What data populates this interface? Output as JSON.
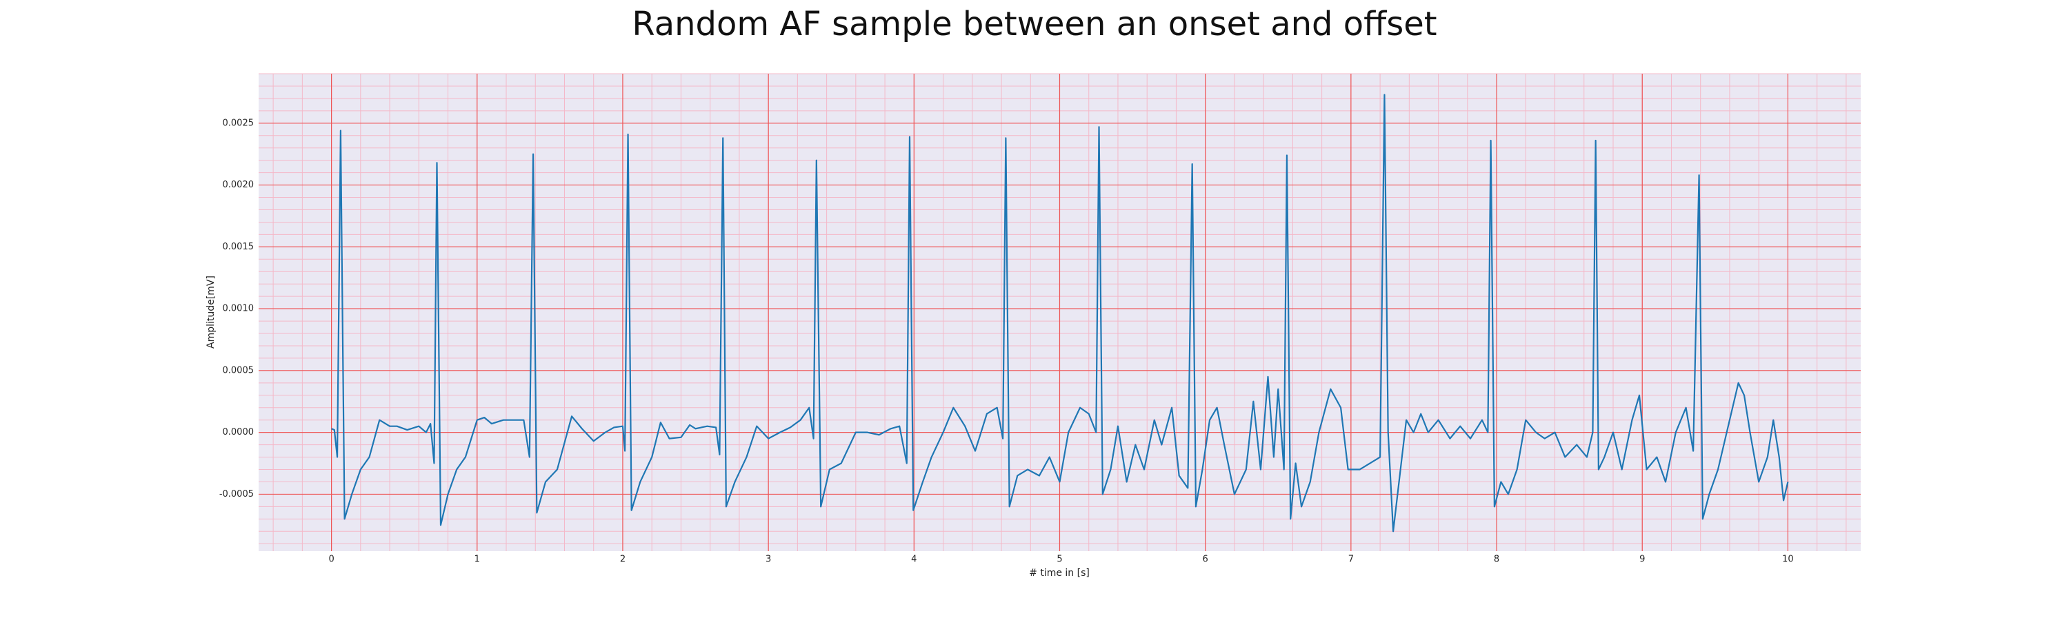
{
  "chart_data": {
    "type": "line",
    "title": "Random AF sample between an onset and offset",
    "xlabel": "# time in [s]",
    "ylabel": "Amplitude[mV]",
    "xlim": [
      -0.5,
      10.5
    ],
    "ylim": [
      -0.00096,
      0.0029
    ],
    "xticks": [
      0,
      1,
      2,
      3,
      4,
      5,
      6,
      7,
      8,
      9,
      10
    ],
    "yticks": [
      -0.0005,
      {
        "value": 0,
        "label": "0.0000"
      },
      0.0005,
      {
        "value": 0.001,
        "label": "0.0010"
      },
      0.0015,
      {
        "value": 0.002,
        "label": "0.0020"
      },
      0.0025
    ],
    "grid": true,
    "minor_grid": true,
    "x": [
      0.0,
      0.02,
      0.04,
      0.063,
      0.09,
      0.14,
      0.2,
      0.26,
      0.33,
      0.4,
      0.45,
      0.52,
      0.6,
      0.65,
      0.68,
      0.705,
      0.724,
      0.75,
      0.8,
      0.86,
      0.92,
      1.0,
      1.05,
      1.1,
      1.18,
      1.25,
      1.32,
      1.36,
      1.385,
      1.41,
      1.47,
      1.55,
      1.65,
      1.72,
      1.8,
      1.88,
      1.94,
      2.0,
      2.015,
      2.036,
      2.06,
      2.12,
      2.2,
      2.26,
      2.32,
      2.4,
      2.46,
      2.5,
      2.58,
      2.64,
      2.665,
      2.688,
      2.71,
      2.77,
      2.85,
      2.92,
      3.0,
      3.08,
      3.15,
      3.22,
      3.28,
      3.31,
      3.33,
      3.36,
      3.42,
      3.5,
      3.6,
      3.68,
      3.76,
      3.84,
      3.9,
      3.95,
      3.97,
      3.995,
      4.06,
      4.12,
      4.2,
      4.27,
      4.35,
      4.42,
      4.5,
      4.57,
      4.61,
      4.63,
      4.655,
      4.71,
      4.78,
      4.86,
      4.93,
      5.0,
      5.06,
      5.14,
      5.2,
      5.25,
      5.27,
      5.295,
      5.35,
      5.4,
      5.46,
      5.52,
      5.58,
      5.65,
      5.7,
      5.77,
      5.82,
      5.88,
      5.91,
      5.935,
      5.98,
      6.03,
      6.08,
      6.13,
      6.2,
      6.28,
      6.33,
      6.38,
      6.43,
      6.47,
      6.5,
      6.54,
      6.56,
      6.585,
      6.62,
      6.66,
      6.72,
      6.78,
      6.86,
      6.93,
      6.98,
      7.06,
      7.2,
      7.23,
      7.255,
      7.29,
      7.33,
      7.38,
      7.43,
      7.48,
      7.53,
      7.6,
      7.68,
      7.75,
      7.82,
      7.9,
      7.94,
      7.96,
      7.985,
      8.03,
      8.08,
      8.14,
      8.2,
      8.27,
      8.33,
      8.4,
      8.47,
      8.55,
      8.62,
      8.66,
      8.68,
      8.7,
      8.74,
      8.8,
      8.86,
      8.93,
      8.98,
      9.03,
      9.1,
      9.16,
      9.23,
      9.3,
      9.35,
      9.39,
      9.415,
      9.46,
      9.52,
      9.58,
      9.62,
      9.66,
      9.7,
      9.74,
      9.8,
      9.86,
      9.9,
      9.94,
      9.97,
      10.0
    ],
    "series": [
      {
        "color": "#1f77b4",
        "values": [
          3e-05,
          2e-05,
          -0.0002,
          0.00244,
          -0.0007,
          -0.0005,
          -0.0003,
          -0.0002,
          0.0001,
          5e-05,
          5e-05,
          2e-05,
          5e-05,
          0,
          7e-05,
          -0.00025,
          0.00218,
          -0.00075,
          -0.0005,
          -0.0003,
          -0.0002,
          0.0001,
          0.00012,
          7e-05,
          0.0001,
          0.0001,
          0.0001,
          -0.0002,
          0.00225,
          -0.00065,
          -0.0004,
          -0.0003,
          0.00013,
          3e-05,
          -7e-05,
          0,
          4e-05,
          5e-05,
          -0.00015,
          0.00241,
          -0.00063,
          -0.0004,
          -0.0002,
          8e-05,
          -5e-05,
          -4e-05,
          6e-05,
          3e-05,
          5e-05,
          4e-05,
          -0.00018,
          0.00238,
          -0.0006,
          -0.0004,
          -0.0002,
          5e-05,
          -5e-05,
          0,
          4e-05,
          0.0001,
          0.0002,
          -5e-05,
          0.0022,
          -0.0006,
          -0.0003,
          -0.00025,
          0,
          0,
          -2e-05,
          3e-05,
          5e-05,
          -0.00025,
          0.00239,
          -0.00063,
          -0.0004,
          -0.0002,
          0,
          0.0002,
          5e-05,
          -0.00015,
          0.00015,
          0.0002,
          -5e-05,
          0.00238,
          -0.0006,
          -0.00035,
          -0.0003,
          -0.00035,
          -0.0002,
          -0.0004,
          0,
          0.0002,
          0.00015,
          0,
          0.00247,
          -0.0005,
          -0.0003,
          5e-05,
          -0.0004,
          -0.0001,
          -0.0003,
          0.0001,
          -0.0001,
          0.0002,
          -0.00035,
          -0.00045,
          0.00217,
          -0.0006,
          -0.0003,
          0.0001,
          0.0002,
          -0.0001,
          -0.0005,
          -0.0003,
          0.00025,
          -0.0003,
          0.00045,
          -0.0002,
          0.00035,
          -0.0003,
          0.00224,
          -0.0007,
          -0.00025,
          -0.0006,
          -0.0004,
          0,
          0.00035,
          0.0002,
          -0.0003,
          -0.0003,
          -0.0002,
          0.00273,
          0,
          -0.0008,
          -0.0004,
          0.0001,
          0,
          0.00015,
          0,
          0.0001,
          -5e-05,
          5e-05,
          -5e-05,
          0.0001,
          0,
          0.00236,
          -0.0006,
          -0.0004,
          -0.0005,
          -0.0003,
          0.0001,
          0,
          -5e-05,
          0,
          -0.0002,
          -0.0001,
          -0.0002,
          0,
          0.00236,
          -0.0003,
          -0.0002,
          0,
          -0.0003,
          0.0001,
          0.0003,
          -0.0003,
          -0.0002,
          -0.0004,
          0,
          0.0002,
          -0.00015,
          0.00208,
          -0.0007,
          -0.0005,
          -0.0003,
          0,
          0.0002,
          0.0004,
          0.0003,
          0,
          -0.0004,
          -0.0002,
          0.0001,
          -0.0002,
          -0.00055,
          -0.0004
        ]
      }
    ]
  }
}
